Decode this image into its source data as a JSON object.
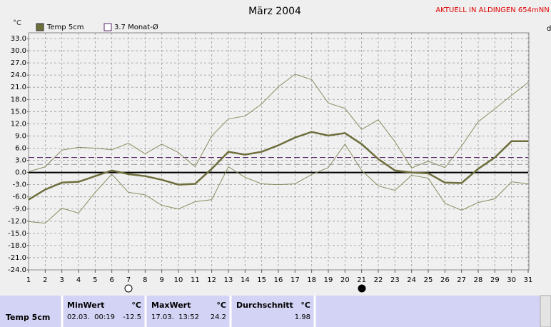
{
  "chart_data": {
    "type": "line",
    "title": "März 2004",
    "annotation": "AKTUELL IN ALDINGEN 654mNN",
    "y_label": "°C",
    "right_label": "d",
    "xlim": [
      1,
      31
    ],
    "xticks": [
      1,
      2,
      3,
      4,
      5,
      6,
      7,
      8,
      9,
      10,
      11,
      12,
      13,
      14,
      15,
      16,
      17,
      18,
      19,
      20,
      21,
      22,
      23,
      24,
      25,
      26,
      27,
      28,
      29,
      30,
      31
    ],
    "x": [
      1,
      2,
      3,
      4,
      5,
      6,
      7,
      8,
      9,
      10,
      11,
      12,
      13,
      14,
      15,
      16,
      17,
      18,
      19,
      20,
      21,
      22,
      23,
      24,
      25,
      26,
      27,
      28,
      29,
      30,
      31
    ],
    "ylim": [
      -24,
      33
    ],
    "yticks": [
      {
        "value": 33,
        "label": "33.0"
      },
      {
        "value": 30,
        "label": "30.0"
      },
      {
        "value": 27,
        "label": "27.0"
      },
      {
        "value": 24,
        "label": "24.0"
      },
      {
        "value": 21,
        "label": "21.0"
      },
      {
        "value": 18,
        "label": "18.0"
      },
      {
        "value": 15,
        "label": "15.0"
      },
      {
        "value": 12,
        "label": "12.0"
      },
      {
        "value": 9,
        "label": "9.0"
      },
      {
        "value": 6,
        "label": "6.0"
      },
      {
        "value": 3,
        "label": "3.0"
      },
      {
        "value": 0,
        "label": "0.0"
      },
      {
        "value": -3,
        "label": "-3.0"
      },
      {
        "value": -6,
        "label": "-6.0"
      },
      {
        "value": -9,
        "label": "-9.0"
      },
      {
        "value": -12,
        "label": "-12.0"
      },
      {
        "value": -15,
        "label": "-15.0"
      },
      {
        "value": -18,
        "label": "-18.0"
      },
      {
        "value": -21,
        "label": "-21.0"
      },
      {
        "value": -24,
        "label": "-24.0"
      }
    ],
    "grid": true,
    "series": [
      {
        "name": "Temp 5cm",
        "color": "#6e6e3c",
        "width": 2.5,
        "values": [
          -6.7,
          -4.2,
          -2.5,
          -2.3,
          -0.9,
          0.5,
          -0.4,
          -0.9,
          -1.8,
          -3.0,
          -2.8,
          0.9,
          5.1,
          4.4,
          5.1,
          6.7,
          8.6,
          10.0,
          9.1,
          9.7,
          7.0,
          3.3,
          0.5,
          0.0,
          -0.2,
          -2.5,
          -2.6,
          0.9,
          3.7,
          7.7,
          7.7
        ]
      },
      {
        "color": "#8c8c60",
        "width": 1,
        "values": [
          0.2,
          1.4,
          5.5,
          6.2,
          6.0,
          5.6,
          7.2,
          4.6,
          7.0,
          4.9,
          1.4,
          9.0,
          13.2,
          13.9,
          16.9,
          21.1,
          24.2,
          22.9,
          17.1,
          15.8,
          10.6,
          13.0,
          7.6,
          1.1,
          2.8,
          1.2,
          6.5,
          12.5,
          15.7,
          19.0,
          22.2
        ]
      },
      {
        "color": "#8c8c60",
        "width": 1,
        "values": [
          -12.1,
          -12.5,
          -8.8,
          -10.0,
          -4.9,
          -0.4,
          -4.9,
          -5.5,
          -8.1,
          -9.0,
          -7.2,
          -6.7,
          1.4,
          -1.2,
          -2.8,
          -3.0,
          -2.8,
          -0.5,
          1.2,
          7.0,
          0.5,
          -3.3,
          -4.4,
          -0.7,
          -1.4,
          -7.6,
          -9.3,
          -7.4,
          -6.5,
          -2.3,
          -2.8
        ]
      }
    ],
    "reference_line": {
      "name": "3.7 Monat-Ø",
      "value": 3.7,
      "color": "#5a2a6a"
    },
    "average_line_color": "#a0a0a0"
  },
  "table": {
    "row": "Temp 5cm",
    "columns": [
      {
        "header": "MinWert",
        "unit": "°C",
        "time": "02.03.  00:19",
        "value": -12.5
      },
      {
        "header": "MaxWert",
        "unit": "°C",
        "time": "17.03.  13:52",
        "value": 24.2
      },
      {
        "header": "Durchschnitt",
        "unit": "°C",
        "value": 1.98
      }
    ]
  }
}
